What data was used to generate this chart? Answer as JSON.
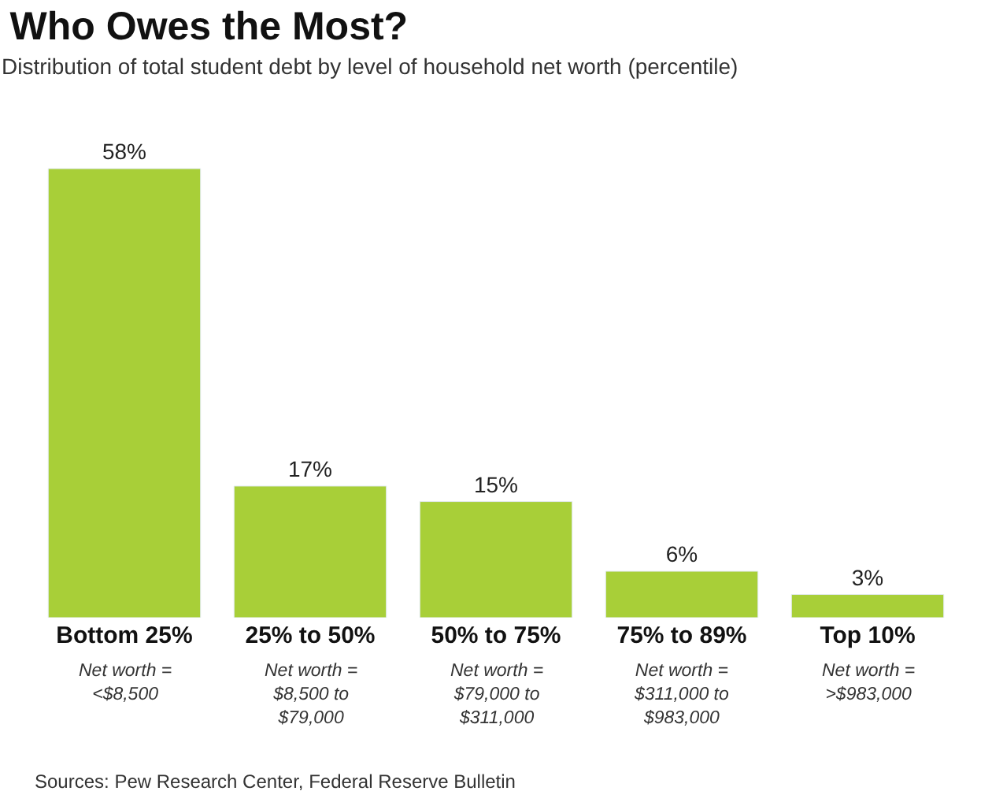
{
  "chart_data": {
    "type": "bar",
    "title": "Who Owes the Most?",
    "subtitle": "Distribution of total student debt by level of household net worth (percentile)",
    "categories": [
      "Bottom 25%",
      "25% to 50%",
      "50% to 75%",
      "75% to 89%",
      "Top 10%"
    ],
    "values": [
      58,
      17,
      15,
      6,
      3
    ],
    "color": "#a8cf38",
    "value_labels": [
      "58%",
      "17%",
      "15%",
      "6%",
      "3%"
    ],
    "annotations": [
      "Net worth =\n<$8,500",
      "Net worth =\n$8,500 to\n$79,000",
      "Net worth =\n$79,000 to\n$311,000",
      "Net worth =\n$311,000 to\n$983,000",
      "Net worth =\n>$983,000",
      "Sources: Pew Research Center, Federal Reserve Bulletin"
    ],
    "legend": false
  }
}
